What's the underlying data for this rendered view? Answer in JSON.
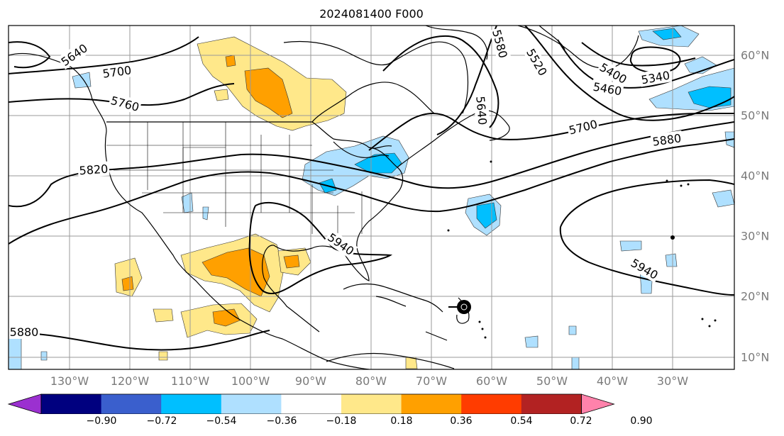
{
  "title": "2024081400 F000",
  "lon_labels": [
    "130°W",
    "120°W",
    "110°W",
    "100°W",
    "90°W",
    "80°W",
    "70°W",
    "60°W",
    "50°W",
    "40°W",
    "30°W"
  ],
  "lat_labels": [
    "60°N",
    "50°N",
    "40°N",
    "30°N",
    "20°N",
    "10°N"
  ],
  "contour_labels": [
    "5640",
    "5700",
    "5760",
    "5820",
    "5880",
    "5940",
    "5580",
    "5520",
    "5400",
    "5460",
    "5340",
    "5640",
    "5700",
    "5880",
    "5940",
    "5880"
  ],
  "colorbar": {
    "colors": [
      "#9b30d0",
      "#00007f",
      "#3a5fcd",
      "#00bfff",
      "#afe0ff",
      "#ffffff",
      "#ffe88a",
      "#ffa000",
      "#ff3c00",
      "#b22222",
      "#ff82ab"
    ],
    "tick_labels": [
      "−0.90",
      "−0.72",
      "−0.54",
      "−0.36",
      "−0.18",
      "0.18",
      "0.36",
      "0.54",
      "0.72",
      "0.90"
    ]
  },
  "colors": {
    "light_blue": "#afe0ff",
    "cyan": "#00bfff",
    "light_yellow": "#ffe88a",
    "orange": "#ffa000"
  }
}
